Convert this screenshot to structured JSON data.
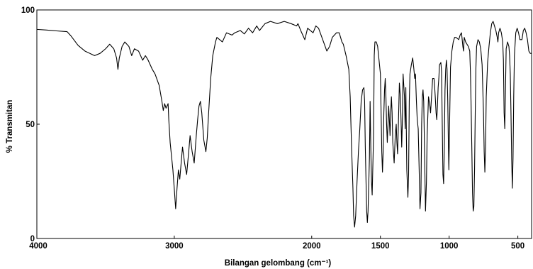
{
  "chart_data": {
    "type": "line",
    "xlabel": "Bilangan gelombang (cm⁻¹)",
    "ylabel": "% Transmitan",
    "xlim": [
      4000,
      400
    ],
    "x_reversed": true,
    "ylim": [
      0,
      100
    ],
    "x_ticks": [
      4000,
      3000,
      2000,
      1500,
      1000,
      500
    ],
    "x_tick_labels": [
      "4000",
      "3000",
      "2000",
      "1500",
      "1000",
      "500"
    ],
    "y_ticks": [
      0,
      50,
      100
    ],
    "y_tick_labels": [
      "0",
      "50",
      "100"
    ],
    "grid": false,
    "series": [
      {
        "line_color": "#000000",
        "points": [
          [
            4000,
            91.5
          ],
          [
            3930,
            91.2
          ],
          [
            3850,
            90.8
          ],
          [
            3780,
            90.5
          ],
          [
            3750,
            88.5
          ],
          [
            3700,
            84.5
          ],
          [
            3650,
            82
          ],
          [
            3580,
            80
          ],
          [
            3540,
            81
          ],
          [
            3500,
            83
          ],
          [
            3470,
            85
          ],
          [
            3440,
            83
          ],
          [
            3420,
            79
          ],
          [
            3410,
            74
          ],
          [
            3400,
            79
          ],
          [
            3380,
            84
          ],
          [
            3360,
            86
          ],
          [
            3330,
            84
          ],
          [
            3310,
            80
          ],
          [
            3290,
            83
          ],
          [
            3260,
            82
          ],
          [
            3230,
            78
          ],
          [
            3210,
            80
          ],
          [
            3190,
            78
          ],
          [
            3160,
            74
          ],
          [
            3140,
            72
          ],
          [
            3110,
            67
          ],
          [
            3090,
            60
          ],
          [
            3080,
            56
          ],
          [
            3070,
            59
          ],
          [
            3060,
            57
          ],
          [
            3045,
            59
          ],
          [
            3040,
            52
          ],
          [
            3030,
            42
          ],
          [
            3010,
            30
          ],
          [
            2998,
            20
          ],
          [
            2990,
            13
          ],
          [
            2980,
            22
          ],
          [
            2970,
            30
          ],
          [
            2960,
            26
          ],
          [
            2940,
            40
          ],
          [
            2925,
            33
          ],
          [
            2910,
            28
          ],
          [
            2895,
            38
          ],
          [
            2885,
            45
          ],
          [
            2870,
            38
          ],
          [
            2855,
            33
          ],
          [
            2840,
            45
          ],
          [
            2830,
            52
          ],
          [
            2820,
            58
          ],
          [
            2810,
            60
          ],
          [
            2800,
            55
          ],
          [
            2785,
            43
          ],
          [
            2770,
            38
          ],
          [
            2760,
            44
          ],
          [
            2750,
            55
          ],
          [
            2735,
            70
          ],
          [
            2720,
            80
          ],
          [
            2700,
            86
          ],
          [
            2690,
            88
          ],
          [
            2670,
            87
          ],
          [
            2650,
            86
          ],
          [
            2620,
            90
          ],
          [
            2580,
            89
          ],
          [
            2560,
            90
          ],
          [
            2520,
            91
          ],
          [
            2490,
            89.5
          ],
          [
            2460,
            92
          ],
          [
            2430,
            90
          ],
          [
            2400,
            93
          ],
          [
            2380,
            91
          ],
          [
            2340,
            94
          ],
          [
            2300,
            95
          ],
          [
            2250,
            94
          ],
          [
            2200,
            95
          ],
          [
            2150,
            94
          ],
          [
            2110,
            93
          ],
          [
            2100,
            94
          ],
          [
            2080,
            91
          ],
          [
            2050,
            87
          ],
          [
            2030,
            92
          ],
          [
            2010,
            91
          ],
          [
            1990,
            90
          ],
          [
            1970,
            93
          ],
          [
            1950,
            92
          ],
          [
            1920,
            87
          ],
          [
            1890,
            82
          ],
          [
            1870,
            84
          ],
          [
            1850,
            88
          ],
          [
            1820,
            90
          ],
          [
            1800,
            90
          ],
          [
            1780,
            86
          ],
          [
            1770,
            85
          ],
          [
            1750,
            80
          ],
          [
            1730,
            74
          ],
          [
            1720,
            62
          ],
          [
            1710,
            40
          ],
          [
            1700,
            22
          ],
          [
            1695,
            10
          ],
          [
            1688,
            5
          ],
          [
            1680,
            10
          ],
          [
            1670,
            25
          ],
          [
            1660,
            38
          ],
          [
            1650,
            48
          ],
          [
            1640,
            60
          ],
          [
            1630,
            65
          ],
          [
            1620,
            66
          ],
          [
            1615,
            60
          ],
          [
            1610,
            40
          ],
          [
            1600,
            12
          ],
          [
            1595,
            7
          ],
          [
            1590,
            12
          ],
          [
            1580,
            35
          ],
          [
            1575,
            60
          ],
          [
            1570,
            40
          ],
          [
            1565,
            25
          ],
          [
            1560,
            19
          ],
          [
            1550,
            45
          ],
          [
            1545,
            80
          ],
          [
            1540,
            86
          ],
          [
            1530,
            86
          ],
          [
            1520,
            84
          ],
          [
            1510,
            78
          ],
          [
            1500,
            72
          ],
          [
            1495,
            55
          ],
          [
            1490,
            38
          ],
          [
            1485,
            29
          ],
          [
            1480,
            38
          ],
          [
            1475,
            55
          ],
          [
            1470,
            65
          ],
          [
            1465,
            70
          ],
          [
            1460,
            62
          ],
          [
            1455,
            50
          ],
          [
            1450,
            42
          ],
          [
            1445,
            50
          ],
          [
            1440,
            58
          ],
          [
            1435,
            52
          ],
          [
            1430,
            45
          ],
          [
            1425,
            55
          ],
          [
            1420,
            62
          ],
          [
            1415,
            55
          ],
          [
            1410,
            42
          ],
          [
            1400,
            33
          ],
          [
            1392,
            45
          ],
          [
            1385,
            50
          ],
          [
            1380,
            42
          ],
          [
            1375,
            37
          ],
          [
            1370,
            48
          ],
          [
            1362,
            68
          ],
          [
            1355,
            62
          ],
          [
            1350,
            52
          ],
          [
            1345,
            40
          ],
          [
            1340,
            52
          ],
          [
            1335,
            72
          ],
          [
            1325,
            62
          ],
          [
            1320,
            48
          ],
          [
            1315,
            66
          ],
          [
            1308,
            30
          ],
          [
            1300,
            18
          ],
          [
            1295,
            28
          ],
          [
            1290,
            60
          ],
          [
            1285,
            72
          ],
          [
            1275,
            76
          ],
          [
            1265,
            79
          ],
          [
            1258,
            75
          ],
          [
            1250,
            70
          ],
          [
            1245,
            72
          ],
          [
            1238,
            60
          ],
          [
            1232,
            52
          ],
          [
            1225,
            48
          ],
          [
            1218,
            30
          ],
          [
            1212,
            13
          ],
          [
            1205,
            20
          ],
          [
            1200,
            50
          ],
          [
            1195,
            62
          ],
          [
            1190,
            65
          ],
          [
            1185,
            60
          ],
          [
            1178,
            35
          ],
          [
            1172,
            12
          ],
          [
            1165,
            25
          ],
          [
            1160,
            45
          ],
          [
            1150,
            62
          ],
          [
            1140,
            58
          ],
          [
            1135,
            55
          ],
          [
            1128,
            62
          ],
          [
            1120,
            70
          ],
          [
            1110,
            70
          ],
          [
            1105,
            66
          ],
          [
            1100,
            61
          ],
          [
            1095,
            55
          ],
          [
            1090,
            52
          ],
          [
            1085,
            58
          ],
          [
            1080,
            66
          ],
          [
            1075,
            70
          ],
          [
            1070,
            76
          ],
          [
            1060,
            77
          ],
          [
            1055,
            73
          ],
          [
            1050,
            50
          ],
          [
            1045,
            28
          ],
          [
            1040,
            24
          ],
          [
            1035,
            40
          ],
          [
            1030,
            65
          ],
          [
            1025,
            74
          ],
          [
            1020,
            78
          ],
          [
            1015,
            74
          ],
          [
            1010,
            60
          ],
          [
            1005,
            40
          ],
          [
            1002,
            30
          ],
          [
            998,
            45
          ],
          [
            990,
            75
          ],
          [
            980,
            82
          ],
          [
            970,
            86
          ],
          [
            960,
            88
          ],
          [
            950,
            88
          ],
          [
            940,
            87.5
          ],
          [
            930,
            87
          ],
          [
            920,
            89
          ],
          [
            910,
            90
          ],
          [
            905,
            87
          ],
          [
            900,
            84
          ],
          [
            895,
            82
          ],
          [
            890,
            88
          ],
          [
            880,
            86
          ],
          [
            870,
            85
          ],
          [
            860,
            84
          ],
          [
            850,
            82
          ],
          [
            845,
            73
          ],
          [
            840,
            58
          ],
          [
            835,
            40
          ],
          [
            830,
            20
          ],
          [
            825,
            12
          ],
          [
            820,
            14
          ],
          [
            815,
            30
          ],
          [
            810,
            55
          ],
          [
            805,
            75
          ],
          [
            800,
            84
          ],
          [
            790,
            87
          ],
          [
            780,
            86
          ],
          [
            770,
            83
          ],
          [
            760,
            76
          ],
          [
            750,
            55
          ],
          [
            745,
            38
          ],
          [
            740,
            29
          ],
          [
            735,
            40
          ],
          [
            730,
            62
          ],
          [
            720,
            77
          ],
          [
            710,
            84
          ],
          [
            700,
            90
          ],
          [
            690,
            94
          ],
          [
            680,
            95
          ],
          [
            670,
            93
          ],
          [
            660,
            91
          ],
          [
            650,
            88
          ],
          [
            645,
            86
          ],
          [
            640,
            90
          ],
          [
            630,
            92
          ],
          [
            620,
            90
          ],
          [
            610,
            86
          ],
          [
            605,
            78
          ],
          [
            600,
            55
          ],
          [
            595,
            48
          ],
          [
            590,
            65
          ],
          [
            585,
            83
          ],
          [
            575,
            86
          ],
          [
            565,
            84
          ],
          [
            560,
            80
          ],
          [
            555,
            72
          ],
          [
            550,
            55
          ],
          [
            545,
            35
          ],
          [
            540,
            22
          ],
          [
            535,
            35
          ],
          [
            530,
            62
          ],
          [
            525,
            80
          ],
          [
            515,
            90
          ],
          [
            505,
            92
          ],
          [
            495,
            90
          ],
          [
            485,
            87
          ],
          [
            470,
            87
          ],
          [
            460,
            91
          ],
          [
            450,
            92
          ],
          [
            440,
            90
          ],
          [
            430,
            87
          ],
          [
            420,
            82
          ],
          [
            410,
            81
          ],
          [
            400,
            81
          ]
        ]
      }
    ]
  }
}
